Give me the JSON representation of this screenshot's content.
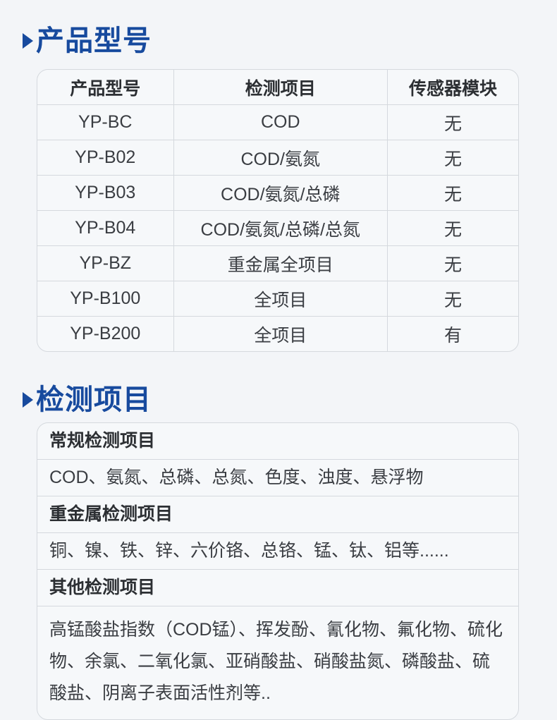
{
  "colors": {
    "accent_blue": "#174a9e",
    "page_bg": "#f3f5f8",
    "card_bg": "#f6f8fa",
    "border": "#d5d9de",
    "heading_text": "#2c2f33",
    "body_text": "#3a3d42"
  },
  "icons": {
    "section_bullet": "right-triangle"
  },
  "sections": {
    "models": {
      "title": "产品型号",
      "table": {
        "headers": [
          "产品型号",
          "检测项目",
          "传感器模块"
        ],
        "rows": [
          [
            "YP-BC",
            "COD",
            "无"
          ],
          [
            "YP-B02",
            "COD/氨氮",
            "无"
          ],
          [
            "YP-B03",
            "COD/氨氮/总磷",
            "无"
          ],
          [
            "YP-B04",
            "COD/氨氮/总磷/总氮",
            "无"
          ],
          [
            "YP-BZ",
            "重金属全项目",
            "无"
          ],
          [
            "YP-B100",
            "全项目",
            "无"
          ],
          [
            "YP-B200",
            "全项目",
            "有"
          ]
        ]
      }
    },
    "detection": {
      "title": "检测项目",
      "groups": [
        {
          "label": "常规检测项目",
          "items": "COD、氨氮、总磷、总氮、色度、浊度、悬浮物"
        },
        {
          "label": "重金属检测项目",
          "items": "铜、镍、铁、锌、六价铬、总铬、锰、钛、铝等......"
        },
        {
          "label": "其他检测项目",
          "items": "高锰酸盐指数（COD锰）、挥发酚、氰化物、氟化物、硫化物、余氯、二氧化氯、亚硝酸盐、硝酸盐氮、磷酸盐、硫酸盐、阴离子表面活性剂等.."
        }
      ]
    }
  }
}
